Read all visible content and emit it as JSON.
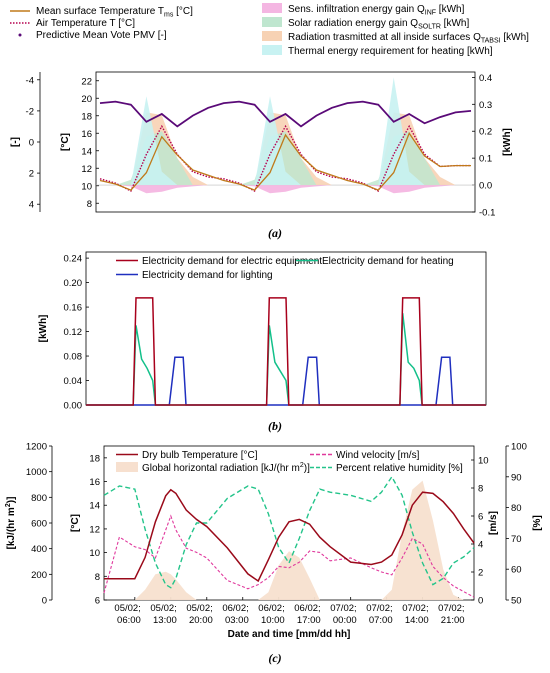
{
  "chart_data": [
    {
      "type": "line",
      "panel_label": "(a)",
      "x_hours": [
        0,
        3,
        6,
        9,
        12,
        15,
        18,
        21,
        24,
        27,
        30,
        33,
        36,
        39,
        42,
        45,
        48,
        51,
        54,
        57,
        60,
        63,
        66,
        69,
        72
      ],
      "legend": [
        {
          "text": "Mean surface Temperature T",
          "sub": "ms",
          "post": " [°C]",
          "kind": "line",
          "color": "#c07a1a"
        },
        {
          "text": "Air Temperature T [°C]",
          "sub": "",
          "post": "",
          "kind": "dotted",
          "color": "#b5004f"
        },
        {
          "text": "Predictive Mean Vote PMV [-]",
          "sub": "",
          "post": "",
          "kind": "dots",
          "color": "#5a0a78"
        },
        {
          "text": "Sens. infiltration energy gain Q",
          "sub": "INF",
          "post": " [kWh]",
          "kind": "box",
          "color": "#f4b6e2"
        },
        {
          "text": "Solar radiation energy gain Q",
          "sub": "SOLTR",
          "post": " [kWh]",
          "kind": "box",
          "color": "#bfe6cf"
        },
        {
          "text": "Radiation trasmitted at all inside surfaces Q",
          "sub": "TABSI",
          "post": " [kWh]",
          "kind": "box",
          "color": "#f7d2b4"
        },
        {
          "text": "Thermal energy requirement for heating [kWh]",
          "sub": "",
          "post": "",
          "kind": "box",
          "color": "#c8f2f2"
        }
      ],
      "axes": {
        "pmv": {
          "label": "[-]",
          "ticks": [
            -4,
            -2,
            0,
            2,
            4
          ],
          "ylim": [
            4.5,
            -4.5
          ]
        },
        "temp": {
          "label": "[°C]",
          "ticks": [
            8,
            10,
            12,
            14,
            16,
            18,
            20,
            22
          ],
          "ylim": [
            7,
            23
          ]
        },
        "kwh": {
          "label": "[kWh]",
          "ticks": [
            -0.1,
            0.0,
            0.1,
            0.2,
            0.3,
            0.4
          ],
          "ylim": [
            -0.1,
            0.42
          ]
        }
      },
      "series": {
        "mean_surface_temperature": [
          10.6,
          10.2,
          9.5,
          11.5,
          15.6,
          13.5,
          11.8,
          11.2,
          10.6,
          10.2,
          9.5,
          11.5,
          15.8,
          13.4,
          11.8,
          11.2,
          10.6,
          10.2,
          9.5,
          11.5,
          16.0,
          13.4,
          12.2,
          12.3,
          12.3
        ],
        "air_temperature": [
          10.8,
          10.3,
          9.4,
          13.6,
          16.8,
          13.6,
          11.6,
          11.0,
          10.8,
          10.3,
          9.4,
          13.6,
          16.8,
          13.6,
          11.6,
          11.0,
          10.8,
          10.3,
          9.4,
          13.6,
          16.8,
          13.6,
          12.2,
          12.3,
          12.3
        ],
        "pmv": [
          -2.5,
          -2.6,
          -2.4,
          -1.3,
          -1.8,
          -1.0,
          -1.7,
          -2.2,
          -2.5,
          -2.6,
          -2.4,
          -1.3,
          -1.8,
          -1.0,
          -1.7,
          -2.2,
          -2.5,
          -2.6,
          -2.4,
          -1.3,
          -1.8,
          -1.2,
          -1.6,
          -1.9,
          -2.0
        ],
        "infiltration_gain": [
          0,
          0,
          -0.005,
          -0.03,
          -0.025,
          -0.01,
          -0.005,
          0,
          0,
          0,
          -0.005,
          -0.03,
          -0.025,
          -0.01,
          -0.005,
          0,
          0,
          0,
          -0.005,
          -0.03,
          -0.025,
          -0.01,
          -0.005,
          0,
          0
        ],
        "solar_gain": [
          0,
          0,
          0.02,
          0.18,
          0.2,
          0.1,
          0,
          0,
          0,
          0,
          0.02,
          0.18,
          0.2,
          0.1,
          0,
          0,
          0,
          0,
          0.02,
          0.18,
          0.2,
          0.1,
          0,
          0,
          0
        ],
        "radiation_transmitted": [
          0,
          0,
          0,
          0.27,
          0.26,
          0.1,
          0.03,
          0,
          0,
          0,
          0,
          0.27,
          0.26,
          0.1,
          0.03,
          0,
          0,
          0,
          0,
          0.27,
          0.26,
          0.1,
          0.03,
          0,
          0
        ],
        "heating_requirement": [
          0,
          0,
          0,
          0.33,
          0.05,
          0,
          0,
          0,
          0,
          0,
          0,
          0.33,
          0.05,
          0,
          0,
          0,
          0,
          0,
          0,
          0.4,
          0.05,
          0,
          0,
          0,
          0
        ]
      }
    },
    {
      "type": "line",
      "panel_label": "(b)",
      "axis_label": "[kWh]",
      "ticks": [
        "0.00",
        "0.04",
        "0.08",
        "0.12",
        "0.16",
        "0.20",
        "0.24"
      ],
      "ylim": [
        0,
        0.25
      ],
      "legend": [
        {
          "text": "Electricity demand for electric equipment",
          "color": "#a8001c"
        },
        {
          "text": "Electricity demand for heating",
          "color": "#13c08a"
        },
        {
          "text": "Electricity demand for lighting",
          "color": "#1f2fbf"
        }
      ],
      "x_hours": [
        0,
        6,
        8.5,
        9,
        10,
        11,
        12,
        12.5,
        13,
        14,
        15,
        16,
        17,
        17.5,
        18,
        19,
        20,
        24,
        32.5,
        33,
        34,
        35,
        36,
        36.5,
        37,
        38,
        39,
        40,
        41,
        41.5,
        42,
        43,
        44,
        48,
        56.5,
        57,
        58,
        59,
        60,
        60.5,
        61,
        62,
        63,
        64,
        65,
        65.5,
        66,
        67,
        68,
        72
      ],
      "series": {
        "electric_equipment": [
          0,
          0,
          0,
          0.175,
          0.175,
          0.175,
          0.175,
          0,
          0,
          0,
          0,
          0,
          0,
          0,
          0,
          0,
          0,
          0,
          0,
          0.175,
          0.175,
          0.175,
          0.175,
          0,
          0,
          0,
          0,
          0,
          0,
          0,
          0,
          0,
          0,
          0,
          0,
          0.175,
          0.175,
          0.175,
          0.175,
          0,
          0,
          0,
          0,
          0,
          0,
          0,
          0,
          0,
          0,
          0
        ],
        "heating": [
          0,
          0,
          0,
          0.13,
          0.075,
          0.06,
          0.04,
          0,
          0,
          0,
          0,
          0,
          0,
          0,
          0,
          0,
          0,
          0,
          0,
          0.13,
          0.07,
          0.055,
          0.04,
          0,
          0,
          0,
          0,
          0,
          0,
          0,
          0,
          0,
          0,
          0,
          0,
          0.15,
          0.07,
          0.06,
          0.04,
          0,
          0,
          0,
          0,
          0,
          0,
          0,
          0,
          0,
          0,
          0
        ],
        "lighting": [
          0,
          0,
          0,
          0,
          0,
          0,
          0,
          0,
          0,
          0,
          0,
          0.078,
          0.078,
          0.078,
          0,
          0,
          0,
          0,
          0,
          0,
          0,
          0,
          0,
          0,
          0,
          0,
          0,
          0.078,
          0.078,
          0.078,
          0,
          0,
          0,
          0,
          0,
          0,
          0,
          0,
          0,
          0,
          0,
          0,
          0,
          0.078,
          0.078,
          0.078,
          0,
          0,
          0,
          0
        ]
      }
    },
    {
      "type": "line",
      "panel_label": "(c)",
      "xlabel": "Date and time [mm/dd hh]",
      "x_ticks": [
        {
          "h": 6,
          "l1": "05/02;",
          "l2": "06:00"
        },
        {
          "h": 13,
          "l1": "05/02;",
          "l2": "13:00"
        },
        {
          "h": 20,
          "l1": "05/02;",
          "l2": "20:00"
        },
        {
          "h": 27,
          "l1": "06/02;",
          "l2": "03:00"
        },
        {
          "h": 34,
          "l1": "06/02;",
          "l2": "10:00"
        },
        {
          "h": 41,
          "l1": "06/02;",
          "l2": "17:00"
        },
        {
          "h": 48,
          "l1": "07/02;",
          "l2": "00:00"
        },
        {
          "h": 55,
          "l1": "07/02;",
          "l2": "07:00"
        },
        {
          "h": 62,
          "l1": "07/02;",
          "l2": "14:00"
        },
        {
          "h": 69,
          "l1": "07/02;",
          "l2": "21:00"
        }
      ],
      "xlim": [
        0,
        72
      ],
      "axes": {
        "radiation": {
          "label": "[kJ/(hr m",
          "sup": "2",
          "post": ")]",
          "ticks": [
            0,
            200,
            400,
            600,
            800,
            1000,
            1200
          ],
          "ylim": [
            0,
            1200
          ]
        },
        "temp": {
          "label": "[°C]",
          "ticks": [
            6,
            8,
            10,
            12,
            14,
            16,
            18
          ],
          "ylim": [
            6,
            19
          ]
        },
        "wind": {
          "label": "[m/s]",
          "ticks": [
            0,
            2,
            4,
            6,
            8,
            10
          ],
          "ylim": [
            0,
            11
          ]
        },
        "humidity": {
          "label": "[%]",
          "ticks": [
            50,
            60,
            70,
            80,
            90,
            100
          ],
          "ylim": [
            50,
            100
          ]
        }
      },
      "legend": [
        {
          "text": "Dry bulb Temperature [°C]",
          "sup": "",
          "post": "",
          "kind": "line",
          "color": "#9a0a1a"
        },
        {
          "text": "Global horizontal radiation [kJ/(hr m",
          "sup": "2",
          "post": ")]",
          "kind": "box",
          "color": "#f7e0cf"
        },
        {
          "text": "Wind velocity [m/s]",
          "sup": "",
          "post": "",
          "kind": "dashed",
          "color": "#e0399d"
        },
        {
          "text": "Percent relative humidity [%]",
          "sup": "",
          "post": "",
          "kind": "dashed",
          "color": "#23c48a"
        }
      ],
      "x_hours": [
        0,
        3,
        6,
        8,
        10,
        12,
        13,
        14,
        16,
        18,
        20,
        24,
        28,
        30,
        32,
        34,
        36,
        38,
        40,
        42,
        44,
        48,
        52,
        54,
        56,
        58,
        60,
        62,
        64,
        66,
        68,
        70,
        72
      ],
      "series": {
        "dry_bulb_temperature": [
          7.8,
          7.8,
          7.8,
          9.6,
          12.6,
          14.8,
          15.3,
          15.0,
          13.6,
          12.8,
          12.2,
          10.4,
          8.2,
          7.6,
          9.4,
          11.3,
          12.6,
          12.8,
          12.4,
          11.3,
          10.5,
          9.2,
          9.0,
          9.2,
          9.8,
          11.5,
          14.0,
          15.1,
          15.0,
          14.3,
          13.3,
          12.0,
          10.8
        ],
        "wind_velocity": [
          0.5,
          4.5,
          3.8,
          3.6,
          3.0,
          5.0,
          6.0,
          5.0,
          3.7,
          3.4,
          3.0,
          1.4,
          0.8,
          1.1,
          1.6,
          2.4,
          2.3,
          2.7,
          3.5,
          3.4,
          2.8,
          3.0,
          2.3,
          2.0,
          1.8,
          3.0,
          4.4,
          4.0,
          2.4,
          1.6,
          1.0,
          0.6,
          0.2
        ],
        "relative_humidity": [
          84,
          87,
          86,
          73,
          62,
          55,
          54,
          57,
          68,
          75,
          75,
          83,
          87,
          86,
          78,
          67,
          62,
          70,
          79,
          86,
          85,
          84,
          82,
          85,
          90,
          84,
          72,
          62,
          55,
          57,
          62,
          64,
          67
        ],
        "global_radiation": [
          0,
          0,
          0,
          80,
          200,
          220,
          200,
          160,
          60,
          0,
          0,
          0,
          0,
          0,
          60,
          270,
          380,
          330,
          170,
          0,
          0,
          0,
          0,
          0,
          80,
          520,
          860,
          930,
          620,
          240,
          40,
          0,
          0
        ]
      }
    }
  ]
}
